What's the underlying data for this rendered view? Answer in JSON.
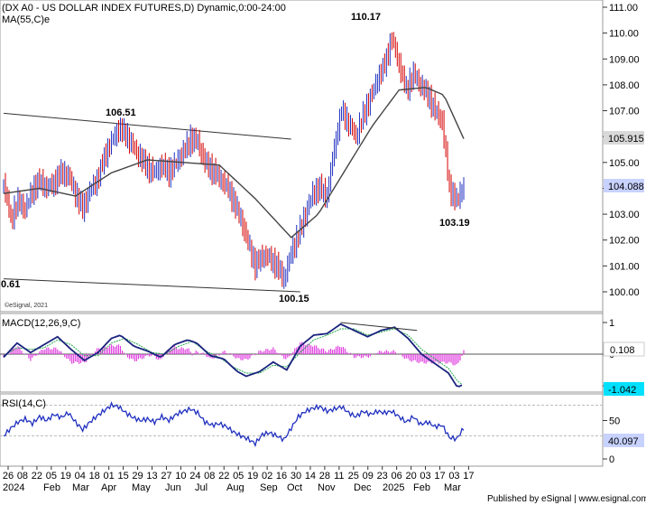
{
  "chart_data": {
    "type": "candlestick",
    "title": "(DX A0 - US DOLLAR INDEX FUTURES,D) Dynamic,0:00-24:00",
    "overlay_label": "MA(55,C)e",
    "watermark": "©eSignal, 2021",
    "footer": "Published by eSignal | www.esignal.com",
    "price_axis": {
      "ticks": [
        "111.00",
        "110.00",
        "109.00",
        "108.00",
        "107.00",
        "106.00",
        "105.00",
        "104.00",
        "103.00",
        "102.00",
        "101.00",
        "100.00"
      ],
      "range": [
        99.6,
        111.2
      ],
      "ma_value_label": "105.915",
      "last_price_label": "104.088",
      "ma_box_color": "#d9d9d9",
      "last_box_color": "#c8d2ff"
    },
    "annotations": {
      "high_2024": "106.51",
      "high_peak": "110.17",
      "low_sep": "100.15",
      "low_mar": "103.19",
      "left_edge": "0.61"
    },
    "x_axis": {
      "day_labels": [
        "26",
        "08",
        "22",
        "05",
        "19",
        "04",
        "18",
        "01",
        "15",
        "29",
        "13",
        "27",
        "10",
        "24",
        "08",
        "22",
        "05",
        "19",
        "02",
        "16",
        "30",
        "14",
        "28",
        "11",
        "25",
        "09",
        "23",
        "06",
        "20",
        "03",
        "17",
        "03",
        "17"
      ],
      "month_labels": [
        "2024",
        "Feb",
        "Mar",
        "Apr",
        "May",
        "Jun",
        "Jul",
        "Aug",
        "Sep",
        "Oct",
        "Nov",
        "Dec",
        "2025",
        "Feb",
        "Mar"
      ]
    },
    "series_close": [
      [
        0,
        104.2
      ],
      [
        8,
        102.8
      ],
      [
        16,
        103.5
      ],
      [
        24,
        103.2
      ],
      [
        32,
        103.9
      ],
      [
        40,
        104.3
      ],
      [
        48,
        104.0
      ],
      [
        56,
        104.2
      ],
      [
        64,
        104.6
      ],
      [
        72,
        104.5
      ],
      [
        80,
        103.8
      ],
      [
        88,
        103.2
      ],
      [
        96,
        103.9
      ],
      [
        104,
        104.3
      ],
      [
        112,
        105.2
      ],
      [
        120,
        105.8
      ],
      [
        128,
        106.3
      ],
      [
        136,
        106.1
      ],
      [
        144,
        105.6
      ],
      [
        152,
        105.2
      ],
      [
        160,
        104.8
      ],
      [
        168,
        104.6
      ],
      [
        176,
        104.9
      ],
      [
        184,
        104.6
      ],
      [
        192,
        105.0
      ],
      [
        200,
        105.4
      ],
      [
        208,
        105.9
      ],
      [
        216,
        105.8
      ],
      [
        224,
        105.0
      ],
      [
        232,
        104.7
      ],
      [
        240,
        104.4
      ],
      [
        248,
        104.1
      ],
      [
        256,
        103.5
      ],
      [
        264,
        102.8
      ],
      [
        272,
        101.9
      ],
      [
        280,
        101.0
      ],
      [
        288,
        101.4
      ],
      [
        296,
        101.3
      ],
      [
        304,
        101.0
      ],
      [
        312,
        100.5
      ],
      [
        320,
        101.5
      ],
      [
        328,
        102.2
      ],
      [
        336,
        103.0
      ],
      [
        344,
        103.8
      ],
      [
        352,
        104.0
      ],
      [
        360,
        103.7
      ],
      [
        368,
        105.6
      ],
      [
        376,
        107.0
      ],
      [
        384,
        106.5
      ],
      [
        392,
        106.0
      ],
      [
        400,
        106.8
      ],
      [
        408,
        107.5
      ],
      [
        416,
        108.2
      ],
      [
        424,
        108.8
      ],
      [
        432,
        109.8
      ],
      [
        440,
        108.8
      ],
      [
        448,
        107.8
      ],
      [
        456,
        108.4
      ],
      [
        464,
        108.0
      ],
      [
        472,
        107.6
      ],
      [
        480,
        107.0
      ],
      [
        488,
        106.6
      ],
      [
        496,
        104.0
      ],
      [
        504,
        103.5
      ],
      [
        512,
        104.1
      ]
    ],
    "series_ma55": [
      [
        0,
        103.8
      ],
      [
        40,
        104.0
      ],
      [
        80,
        103.7
      ],
      [
        120,
        104.6
      ],
      [
        160,
        105.1
      ],
      [
        200,
        105.0
      ],
      [
        240,
        104.9
      ],
      [
        280,
        103.6
      ],
      [
        320,
        102.1
      ],
      [
        350,
        103.0
      ],
      [
        380,
        104.7
      ],
      [
        410,
        106.4
      ],
      [
        440,
        107.8
      ],
      [
        470,
        107.9
      ],
      [
        490,
        107.6
      ],
      [
        512,
        105.915
      ]
    ],
    "trendlines": [
      {
        "name": "upper-channel",
        "points": [
          [
            0,
            106.9
          ],
          [
            320,
            105.9
          ]
        ]
      },
      {
        "name": "lower-channel",
        "points": [
          [
            0,
            100.5
          ],
          [
            330,
            100.0
          ]
        ]
      }
    ],
    "macd": {
      "title": "MACD(12,26,9,C)",
      "ticks": [
        "1",
        "0",
        "-1"
      ],
      "range": [
        -1.2,
        1.15
      ],
      "value_label": "0.108",
      "signal_label": "-1.042",
      "signal_box_color": "#00e0ff",
      "series_macd": [
        [
          0,
          -0.1
        ],
        [
          15,
          0.35
        ],
        [
          30,
          0.05
        ],
        [
          45,
          0.3
        ],
        [
          60,
          0.55
        ],
        [
          75,
          0.15
        ],
        [
          90,
          -0.2
        ],
        [
          105,
          0.05
        ],
        [
          120,
          0.5
        ],
        [
          130,
          0.6
        ],
        [
          145,
          0.25
        ],
        [
          160,
          0.1
        ],
        [
          175,
          -0.1
        ],
        [
          190,
          0.3
        ],
        [
          205,
          0.45
        ],
        [
          215,
          0.35
        ],
        [
          230,
          -0.05
        ],
        [
          245,
          -0.15
        ],
        [
          260,
          -0.55
        ],
        [
          270,
          -0.7
        ],
        [
          285,
          -0.55
        ],
        [
          300,
          -0.25
        ],
        [
          315,
          -0.5
        ],
        [
          330,
          0.25
        ],
        [
          345,
          0.6
        ],
        [
          360,
          0.65
        ],
        [
          375,
          0.95
        ],
        [
          390,
          0.75
        ],
        [
          405,
          0.55
        ],
        [
          420,
          0.75
        ],
        [
          435,
          0.85
        ],
        [
          450,
          0.5
        ],
        [
          465,
          0.0
        ],
        [
          480,
          -0.3
        ],
        [
          495,
          -0.6
        ],
        [
          505,
          -1.05
        ],
        [
          512,
          -0.95
        ]
      ],
      "series_signal": [
        [
          0,
          -0.05
        ],
        [
          15,
          0.2
        ],
        [
          30,
          0.15
        ],
        [
          45,
          0.2
        ],
        [
          60,
          0.45
        ],
        [
          75,
          0.3
        ],
        [
          90,
          -0.05
        ],
        [
          105,
          -0.05
        ],
        [
          120,
          0.35
        ],
        [
          135,
          0.5
        ],
        [
          150,
          0.3
        ],
        [
          165,
          0.05
        ],
        [
          180,
          0.0
        ],
        [
          195,
          0.25
        ],
        [
          210,
          0.4
        ],
        [
          225,
          0.1
        ],
        [
          240,
          -0.1
        ],
        [
          255,
          -0.4
        ],
        [
          270,
          -0.6
        ],
        [
          285,
          -0.6
        ],
        [
          300,
          -0.35
        ],
        [
          315,
          -0.4
        ],
        [
          330,
          0.05
        ],
        [
          345,
          0.45
        ],
        [
          360,
          0.6
        ],
        [
          375,
          0.8
        ],
        [
          390,
          0.8
        ],
        [
          405,
          0.6
        ],
        [
          420,
          0.7
        ],
        [
          435,
          0.8
        ],
        [
          450,
          0.6
        ],
        [
          465,
          0.15
        ],
        [
          480,
          -0.15
        ],
        [
          495,
          -0.45
        ],
        [
          505,
          -0.85
        ],
        [
          512,
          -1.0
        ]
      ],
      "trendline": [
        [
          375,
          1.0
        ],
        [
          460,
          0.75
        ]
      ]
    },
    "rsi": {
      "title": "RSI(14,C)",
      "ticks": [
        "50",
        "0"
      ],
      "range": [
        -8,
        100
      ],
      "levels": [
        70,
        30
      ],
      "value_label": "40.097",
      "value_box_color": "#c8d2ff",
      "series": [
        [
          0,
          30
        ],
        [
          8,
          40
        ],
        [
          16,
          48
        ],
        [
          24,
          52
        ],
        [
          32,
          46
        ],
        [
          40,
          55
        ],
        [
          48,
          50
        ],
        [
          56,
          58
        ],
        [
          64,
          54
        ],
        [
          72,
          60
        ],
        [
          80,
          48
        ],
        [
          88,
          38
        ],
        [
          96,
          48
        ],
        [
          104,
          56
        ],
        [
          112,
          63
        ],
        [
          120,
          70
        ],
        [
          128,
          68
        ],
        [
          136,
          60
        ],
        [
          144,
          54
        ],
        [
          152,
          50
        ],
        [
          160,
          52
        ],
        [
          168,
          48
        ],
        [
          176,
          55
        ],
        [
          184,
          50
        ],
        [
          192,
          58
        ],
        [
          200,
          62
        ],
        [
          208,
          65
        ],
        [
          216,
          60
        ],
        [
          224,
          48
        ],
        [
          232,
          44
        ],
        [
          240,
          46
        ],
        [
          248,
          42
        ],
        [
          256,
          35
        ],
        [
          264,
          30
        ],
        [
          272,
          26
        ],
        [
          280,
          20
        ],
        [
          288,
          32
        ],
        [
          296,
          34
        ],
        [
          304,
          30
        ],
        [
          312,
          25
        ],
        [
          320,
          40
        ],
        [
          328,
          55
        ],
        [
          336,
          62
        ],
        [
          344,
          66
        ],
        [
          352,
          68
        ],
        [
          360,
          62
        ],
        [
          368,
          65
        ],
        [
          376,
          68
        ],
        [
          384,
          60
        ],
        [
          392,
          55
        ],
        [
          400,
          62
        ],
        [
          408,
          58
        ],
        [
          416,
          62
        ],
        [
          424,
          60
        ],
        [
          432,
          62
        ],
        [
          440,
          55
        ],
        [
          448,
          48
        ],
        [
          456,
          55
        ],
        [
          464,
          45
        ],
        [
          472,
          48
        ],
        [
          480,
          42
        ],
        [
          488,
          44
        ],
        [
          496,
          28
        ],
        [
          504,
          26
        ],
        [
          512,
          40
        ]
      ]
    }
  }
}
